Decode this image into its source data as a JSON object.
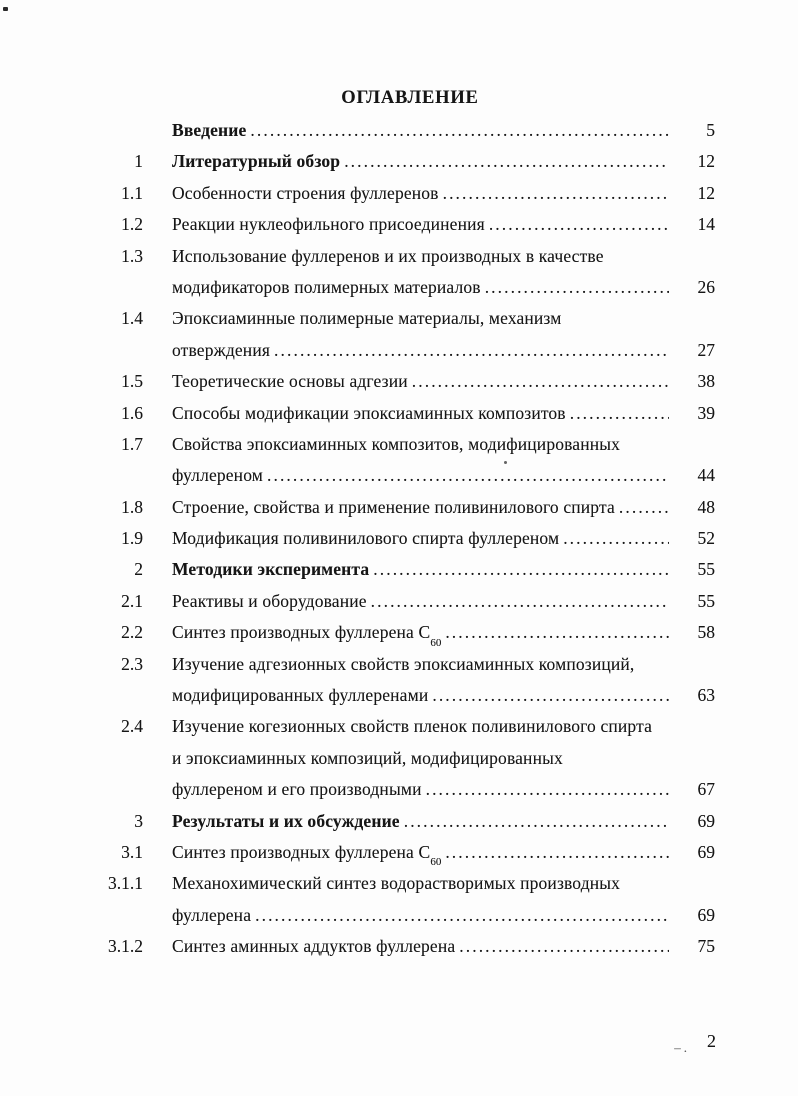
{
  "title": "ОГЛАВЛЕНИЕ",
  "footer": {
    "page_number": "2",
    "artifact": "–."
  },
  "toc": {
    "rows": [
      {
        "n": "",
        "t": "Введение",
        "p": "5"
      },
      {
        "n": "1",
        "t": "Литературный обзор",
        "p": "12"
      },
      {
        "n": "1.1",
        "t": "Особенности строения фуллеренов",
        "p": "12"
      },
      {
        "n": "1.2",
        "t": "Реакции нуклеофильного присоединения",
        "p": "14"
      },
      {
        "n": "1.3",
        "t": "Использование фуллеренов и их производных в качестве",
        "p": ""
      },
      {
        "n": "",
        "t": "модификаторов полимерных материалов",
        "p": "26"
      },
      {
        "n": "1.4",
        "t": "Эпоксиаминные полимерные материалы, механизм",
        "p": ""
      },
      {
        "n": "",
        "t": "отверждения",
        "p": "27"
      },
      {
        "n": "1.5",
        "t": "Теоретические основы адгезии",
        "p": "38"
      },
      {
        "n": "1.6",
        "t": "Способы модификации эпоксиаминных композитов",
        "p": "39"
      },
      {
        "n": "1.7",
        "t": "Свойства эпоксиаминных композитов, модифицированных",
        "p": ""
      },
      {
        "n": "",
        "t": "фуллереном",
        "p": "44"
      },
      {
        "n": "1.8",
        "t": "Строение, свойства и применение поливинилового спирта",
        "p": "48"
      },
      {
        "n": "1.9",
        "t": "Модификация поливинилового спирта фуллереном",
        "p": "52"
      },
      {
        "n": "2",
        "t": "Методики эксперимента",
        "p": "55"
      },
      {
        "n": "2.1",
        "t": "Реактивы и оборудование",
        "p": "55"
      },
      {
        "n": "2.2",
        "t": "Синтез производных фуллерена С",
        "sub": "60",
        "p": "58"
      },
      {
        "n": "2.3",
        "t": "Изучение адгезионных свойств эпоксиаминных композиций,",
        "p": ""
      },
      {
        "n": "",
        "t": "модифицированных фуллеренами",
        "p": "63"
      },
      {
        "n": "2.4",
        "t": "Изучение когезионных свойств пленок поливинилового спирта",
        "p": ""
      },
      {
        "n": "",
        "t": "и эпоксиаминных композиций, модифицированных",
        "p": ""
      },
      {
        "n": "",
        "t": "фуллереном и его производными",
        "p": "67"
      },
      {
        "n": "3",
        "t": "Результаты и их обсуждение",
        "p": "69"
      },
      {
        "n": "3.1",
        "t": "Синтез производных фуллерена С",
        "sub": "60",
        "p": "69"
      },
      {
        "n": "3.1.1",
        "t": "Механохимический синтез водорастворимых производных",
        "p": ""
      },
      {
        "n": "",
        "t": "фуллерена",
        "p": "69"
      },
      {
        "n": "3.1.2",
        "t": "Синтез аминных аддуктов фуллерена",
        "p": "75"
      }
    ]
  }
}
